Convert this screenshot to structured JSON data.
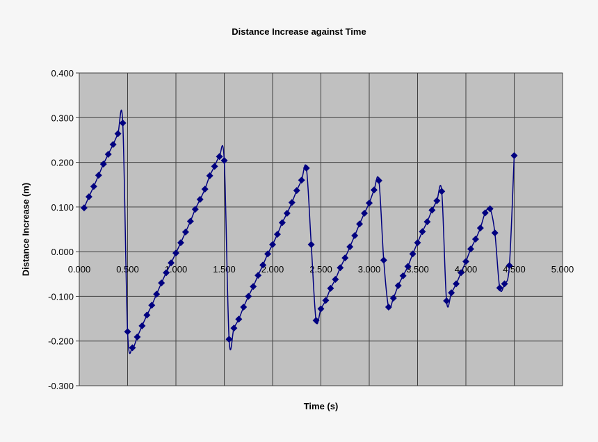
{
  "chart_data": {
    "type": "line",
    "title": "Distance Increase against Time",
    "xlabel": "Time (s)",
    "ylabel": "Distance Increase (m)",
    "xlim": [
      0,
      5
    ],
    "ylim": [
      -0.3,
      0.4
    ],
    "x_ticks": [
      "0.000",
      "0.500",
      "1.000",
      "1.500",
      "2.000",
      "2.500",
      "3.000",
      "3.500",
      "4.000",
      "4.500",
      "5.000"
    ],
    "y_ticks": [
      "0.400",
      "0.300",
      "0.200",
      "0.100",
      "0.000",
      "-0.100",
      "-0.200",
      "-0.300"
    ],
    "grid": true,
    "legend": null,
    "colors": {
      "series": "#000080",
      "plot_bg": "#c0c0c0",
      "grid": "#404040",
      "page_bg": "#f6f6f6"
    },
    "series": [
      {
        "name": "Distance Increase",
        "marker": "diamond",
        "x": [
          0.05,
          0.1,
          0.15,
          0.2,
          0.25,
          0.3,
          0.35,
          0.4,
          0.45,
          0.5,
          0.55,
          0.6,
          0.65,
          0.7,
          0.75,
          0.8,
          0.85,
          0.9,
          0.95,
          1.0,
          1.05,
          1.1,
          1.15,
          1.2,
          1.25,
          1.3,
          1.35,
          1.4,
          1.45,
          1.5,
          1.55,
          1.6,
          1.65,
          1.7,
          1.75,
          1.8,
          1.85,
          1.9,
          1.95,
          2.0,
          2.05,
          2.1,
          2.15,
          2.2,
          2.25,
          2.3,
          2.35,
          2.4,
          2.45,
          2.5,
          2.55,
          2.6,
          2.65,
          2.7,
          2.75,
          2.8,
          2.85,
          2.9,
          2.95,
          3.0,
          3.05,
          3.1,
          3.15,
          3.2,
          3.25,
          3.3,
          3.35,
          3.4,
          3.45,
          3.5,
          3.55,
          3.6,
          3.65,
          3.7,
          3.75,
          3.8,
          3.85,
          3.9,
          3.95,
          4.0,
          4.05,
          4.1,
          4.15,
          4.2,
          4.25,
          4.3,
          4.35,
          4.4,
          4.45,
          4.5
        ],
        "y": [
          0.098,
          0.123,
          0.146,
          0.171,
          0.196,
          0.218,
          0.24,
          0.264,
          0.288,
          -0.179,
          -0.215,
          -0.191,
          -0.166,
          -0.142,
          -0.12,
          -0.095,
          -0.07,
          -0.047,
          -0.025,
          -0.003,
          0.02,
          0.044,
          0.068,
          0.095,
          0.117,
          0.14,
          0.17,
          0.191,
          0.213,
          0.204,
          -0.196,
          -0.171,
          -0.151,
          -0.124,
          -0.1,
          -0.078,
          -0.053,
          -0.03,
          -0.005,
          0.016,
          0.039,
          0.065,
          0.086,
          0.11,
          0.137,
          0.16,
          0.187,
          0.016,
          -0.154,
          -0.128,
          -0.109,
          -0.082,
          -0.062,
          -0.036,
          -0.014,
          0.011,
          0.036,
          0.062,
          0.086,
          0.109,
          0.138,
          0.159,
          -0.019,
          -0.124,
          -0.104,
          -0.076,
          -0.054,
          -0.033,
          -0.005,
          0.02,
          0.045,
          0.067,
          0.093,
          0.114,
          0.135,
          -0.11,
          -0.092,
          -0.072,
          -0.047,
          -0.022,
          0.006,
          0.028,
          0.053,
          0.087,
          0.096,
          0.042,
          -0.081,
          -0.072,
          -0.031,
          0.215
        ]
      }
    ]
  }
}
